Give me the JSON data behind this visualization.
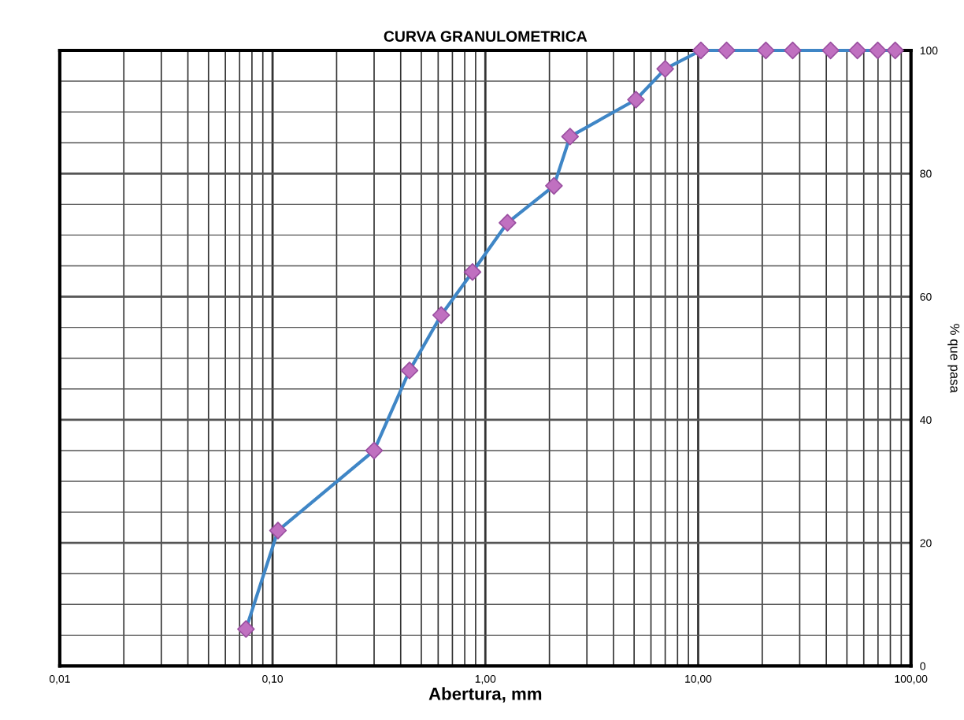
{
  "chart_data": {
    "type": "line",
    "title": "CURVA GRANULOMETRICA",
    "xlabel": "Abertura, mm",
    "ylabel": "% que pasa",
    "log": "x",
    "marker": "diamond",
    "line_style": "solid",
    "grid": true,
    "xlim": [
      0.01,
      100
    ],
    "ylim": [
      0,
      100
    ],
    "xticks": [
      {
        "value": 0.01,
        "label": "0,01"
      },
      {
        "value": 0.02,
        "label": null
      },
      {
        "value": 0.03,
        "label": null
      },
      {
        "value": 0.04,
        "label": null
      },
      {
        "value": 0.05,
        "label": null
      },
      {
        "value": 0.06,
        "label": null
      },
      {
        "value": 0.07,
        "label": null
      },
      {
        "value": 0.08,
        "label": null
      },
      {
        "value": 0.09,
        "label": null
      },
      {
        "value": 0.1,
        "label": "0,10"
      },
      {
        "value": 0.2,
        "label": null
      },
      {
        "value": 0.3,
        "label": null
      },
      {
        "value": 0.4,
        "label": null
      },
      {
        "value": 0.5,
        "label": null
      },
      {
        "value": 0.6,
        "label": null
      },
      {
        "value": 0.7,
        "label": null
      },
      {
        "value": 0.8,
        "label": null
      },
      {
        "value": 0.9,
        "label": null
      },
      {
        "value": 1,
        "label": "1,00"
      },
      {
        "value": 2,
        "label": null
      },
      {
        "value": 3,
        "label": null
      },
      {
        "value": 4,
        "label": null
      },
      {
        "value": 5,
        "label": null
      },
      {
        "value": 6,
        "label": null
      },
      {
        "value": 7,
        "label": null
      },
      {
        "value": 8,
        "label": null
      },
      {
        "value": 9,
        "label": null
      },
      {
        "value": 10,
        "label": "10,00"
      },
      {
        "value": 20,
        "label": null
      },
      {
        "value": 30,
        "label": null
      },
      {
        "value": 40,
        "label": null
      },
      {
        "value": 50,
        "label": null
      },
      {
        "value": 60,
        "label": null
      },
      {
        "value": 70,
        "label": null
      },
      {
        "value": 80,
        "label": null
      },
      {
        "value": 90,
        "label": null
      },
      {
        "value": 100,
        "label": "100,00"
      }
    ],
    "yticks": [
      0,
      {
        "value": 5,
        "label": null
      },
      {
        "value": 10,
        "label": null
      },
      {
        "value": 15,
        "label": null
      },
      20,
      {
        "value": 25,
        "label": null
      },
      {
        "value": 30,
        "label": null
      },
      {
        "value": 35,
        "label": null
      },
      40,
      {
        "value": 45,
        "label": null
      },
      {
        "value": 50,
        "label": null
      },
      {
        "value": 55,
        "label": null
      },
      60,
      {
        "value": 65,
        "label": null
      },
      {
        "value": 70,
        "label": null
      },
      {
        "value": 75,
        "label": null
      },
      80,
      {
        "value": 85,
        "label": null
      },
      {
        "value": 90,
        "label": null
      },
      {
        "value": 95,
        "label": null
      },
      100
    ],
    "series": [
      {
        "color": "#3f86c6",
        "colors": [
          "#c070c0",
          "#c070c0",
          "#c070c0",
          "#c070c0",
          "#c070c0",
          "#c070c0",
          "#c070c0",
          "#c070c0",
          "#c070c0",
          "#c070c0",
          "#c070c0",
          "#c070c0",
          "#c070c0",
          "#c070c0",
          "#c070c0",
          "#c070c0",
          "#c070c0",
          "#c070c0",
          "#c070c0"
        ],
        "x": [
          0.075,
          0.106,
          0.3,
          0.44,
          0.62,
          0.87,
          1.27,
          2.1,
          2.5,
          5.1,
          7.0,
          10.3,
          13.6,
          20.8,
          27.8,
          41.9,
          56,
          69.8,
          84.3
        ],
        "values": [
          6,
          22,
          35,
          48,
          57,
          64,
          72,
          78,
          86,
          92,
          97,
          100,
          100,
          100,
          100,
          100,
          100,
          100,
          100
        ]
      }
    ]
  }
}
